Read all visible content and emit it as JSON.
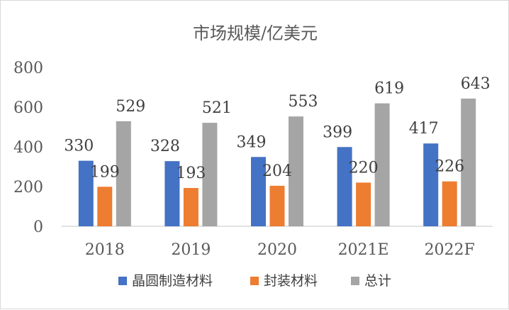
{
  "chart_data": {
    "type": "bar",
    "title": "市场规模/亿美元",
    "categories": [
      "2018",
      "2019",
      "2020",
      "2021E",
      "2022F"
    ],
    "series": [
      {
        "name": "晶圆制造材料",
        "values": [
          330,
          328,
          349,
          399,
          417
        ],
        "color": "#4472c4"
      },
      {
        "name": "封装材料",
        "values": [
          199,
          193,
          204,
          220,
          226
        ],
        "color": "#ed7d31"
      },
      {
        "name": "总计",
        "values": [
          529,
          521,
          553,
          619,
          643
        ],
        "color": "#a5a5a5"
      }
    ],
    "ylim": [
      0,
      800
    ],
    "yticks": [
      "0",
      "200",
      "400",
      "600",
      "800"
    ],
    "grid": false,
    "legend": "bottom",
    "data_labels": true
  }
}
